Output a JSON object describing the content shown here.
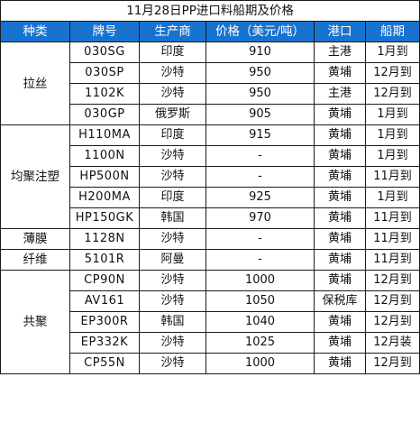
{
  "title": "11月28日PP进口料船期及价格",
  "columns": [
    "种类",
    "牌号",
    "生产商",
    "价格（美元/吨）",
    "港口",
    "船期"
  ],
  "groups": [
    {
      "category": "拉丝",
      "rows": [
        {
          "grade": "030SG",
          "producer": "印度",
          "price": "910",
          "port": "主港",
          "schedule": "1月到"
        },
        {
          "grade": "030SP",
          "producer": "沙特",
          "price": "950",
          "port": "黄埔",
          "schedule": "12月到"
        },
        {
          "grade": "1102K",
          "producer": "沙特",
          "price": "950",
          "port": "主港",
          "schedule": "12月到"
        },
        {
          "grade": "030GP",
          "producer": "俄罗斯",
          "price": "905",
          "port": "黄埔",
          "schedule": "1月到"
        }
      ]
    },
    {
      "category": "均聚注塑",
      "rows": [
        {
          "grade": "H110MA",
          "producer": "印度",
          "price": "915",
          "port": "黄埔",
          "schedule": "1月到"
        },
        {
          "grade": "1100N",
          "producer": "沙特",
          "price": "-",
          "port": "黄埔",
          "schedule": "1月到"
        },
        {
          "grade": "HP500N",
          "producer": "沙特",
          "price": "-",
          "port": "黄埔",
          "schedule": "11月到"
        },
        {
          "grade": "H200MA",
          "producer": "印度",
          "price": "925",
          "port": "黄埔",
          "schedule": "1月到"
        },
        {
          "grade": "HP150GK",
          "producer": "韩国",
          "price": "970",
          "port": "黄埔",
          "schedule": "11月到"
        }
      ]
    },
    {
      "category": "薄膜",
      "rows": [
        {
          "grade": "1128N",
          "producer": "沙特",
          "price": "-",
          "port": "黄埔",
          "schedule": "11月到"
        }
      ]
    },
    {
      "category": "纤维",
      "rows": [
        {
          "grade": "5101R",
          "producer": "阿曼",
          "price": "-",
          "port": "黄埔",
          "schedule": "11月到"
        }
      ]
    },
    {
      "category": "共聚",
      "rows": [
        {
          "grade": "CP90N",
          "producer": "沙特",
          "price": "1000",
          "port": "黄埔",
          "schedule": "12月到"
        },
        {
          "grade": "AV161",
          "producer": "沙特",
          "price": "1050",
          "port": "保税库",
          "schedule": "12月到"
        },
        {
          "grade": "EP300R",
          "producer": "韩国",
          "price": "1040",
          "port": "黄埔",
          "schedule": "12月到"
        },
        {
          "grade": "EP332K",
          "producer": "沙特",
          "price": "1025",
          "port": "黄埔",
          "schedule": "12月装"
        },
        {
          "grade": "CP55N",
          "producer": "沙特",
          "price": "1000",
          "port": "黄埔",
          "schedule": "12月到"
        }
      ]
    }
  ]
}
